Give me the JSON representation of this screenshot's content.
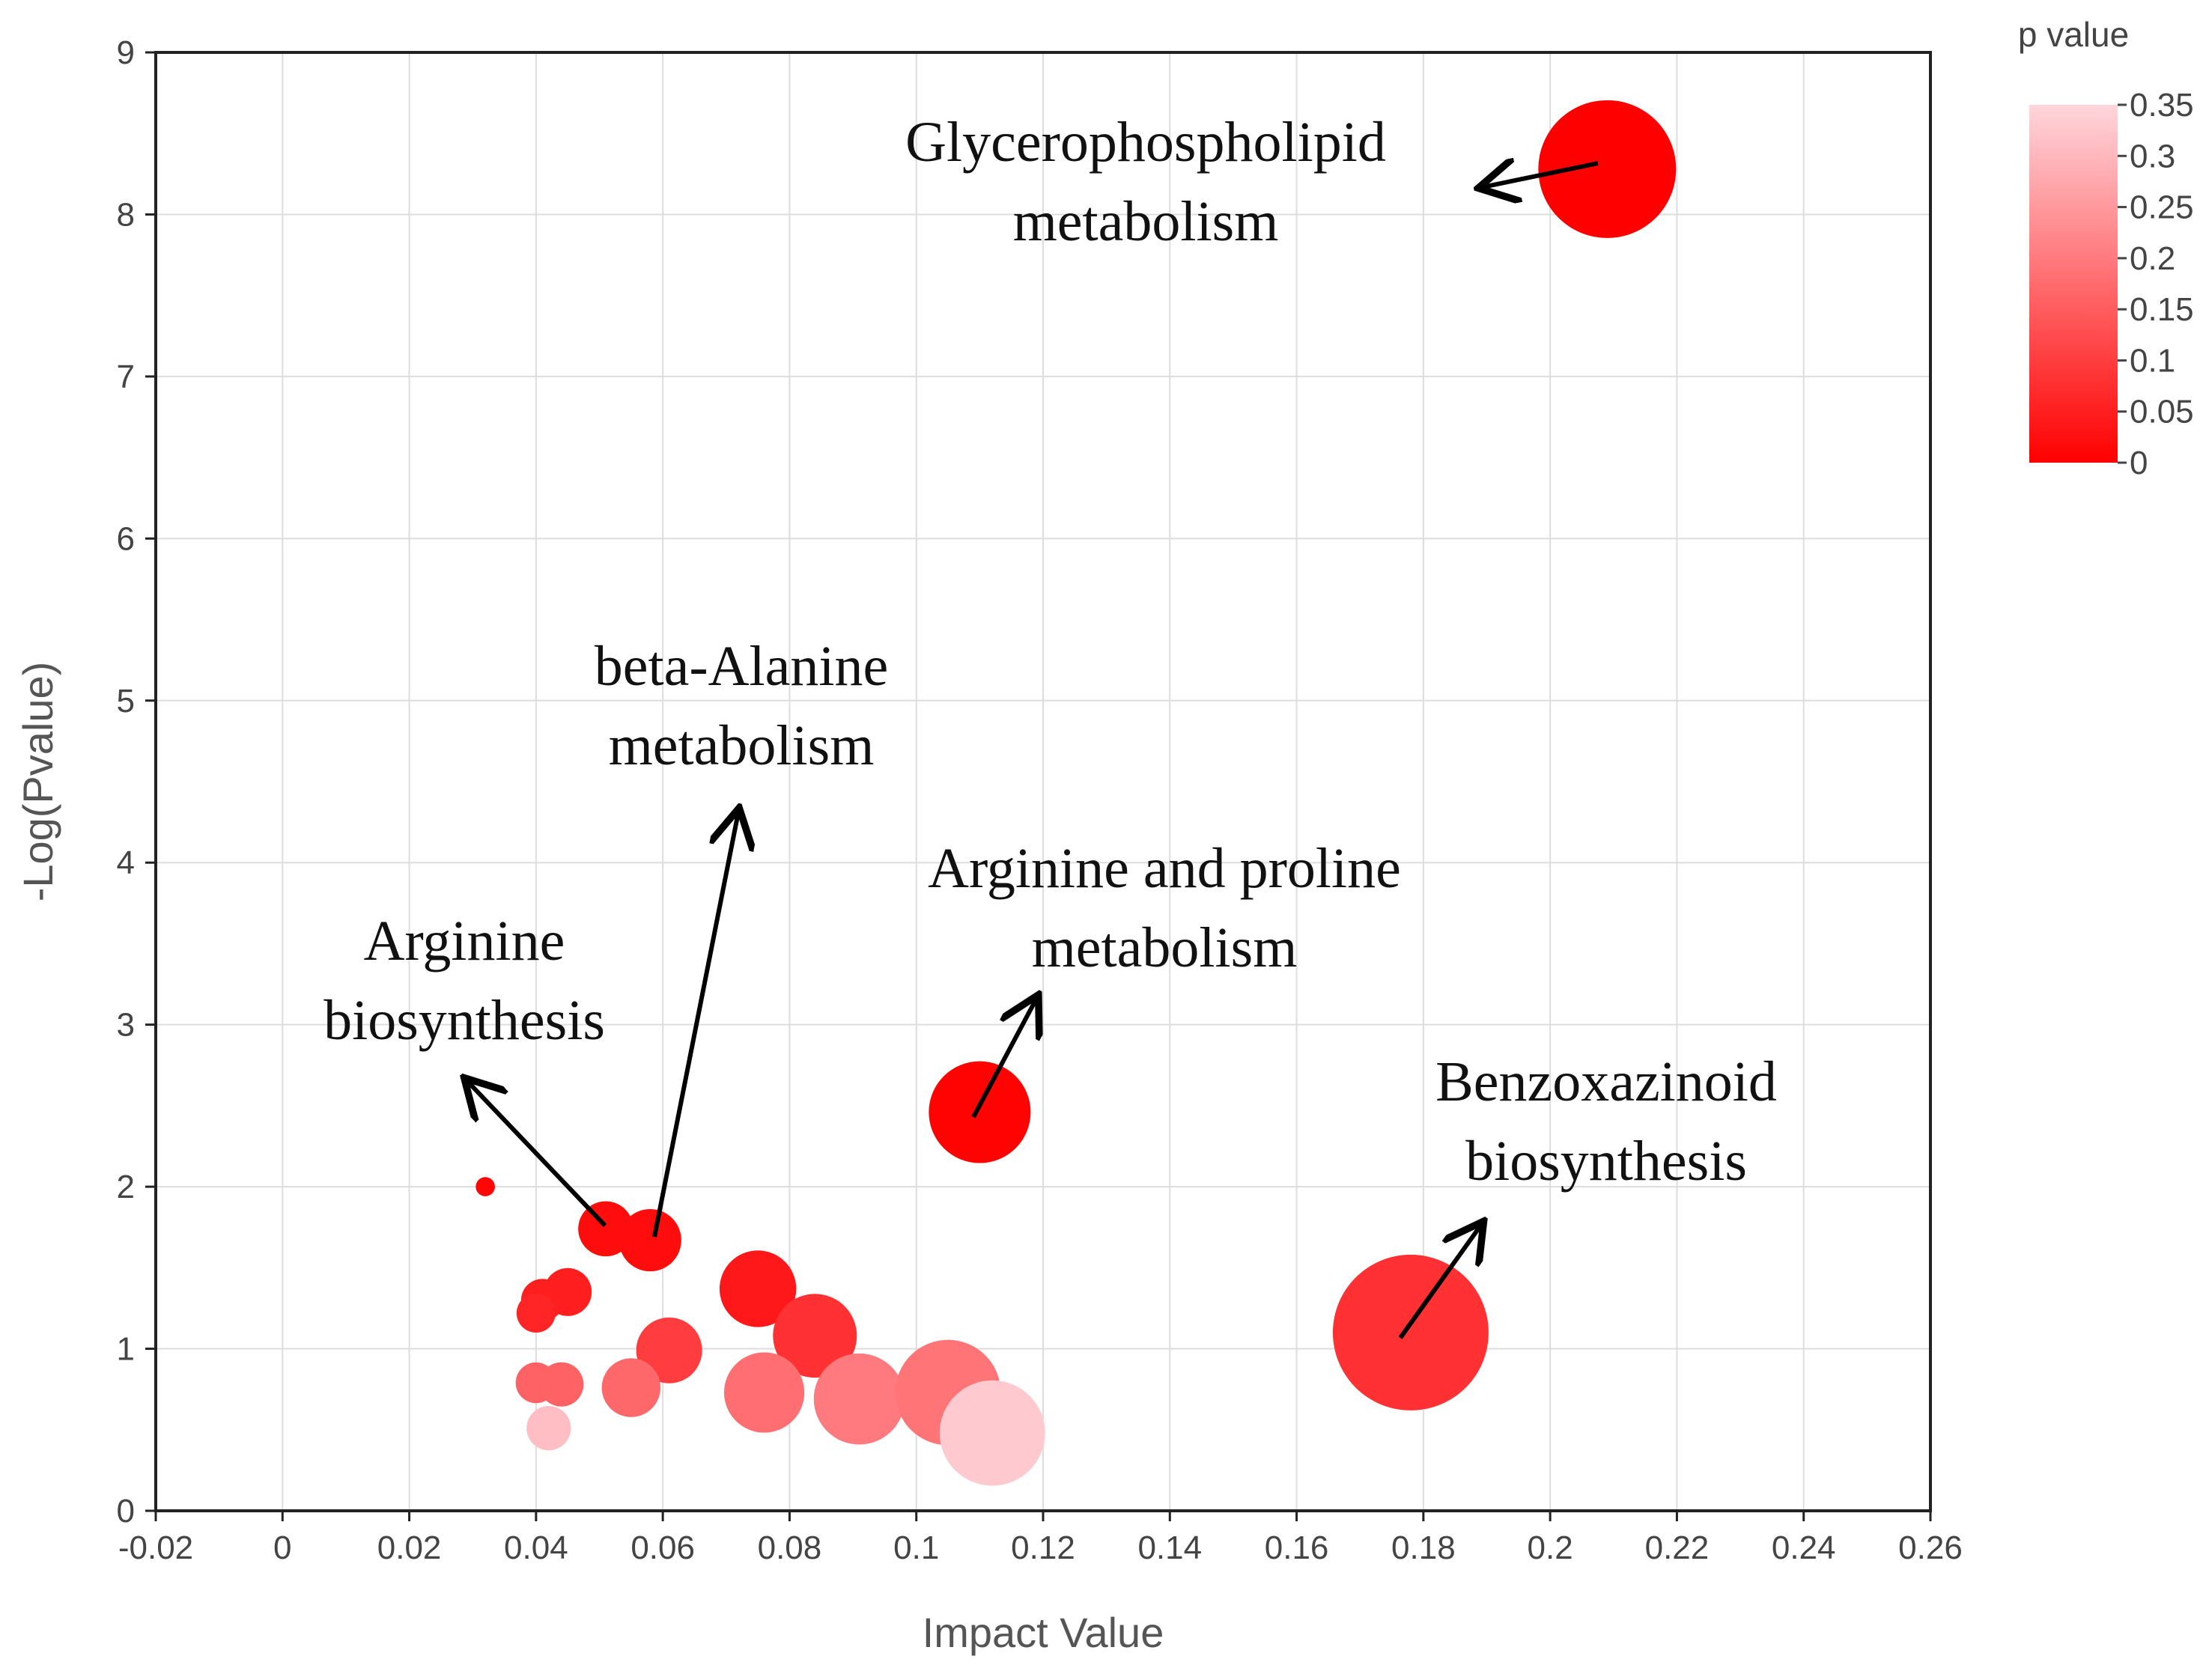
{
  "chart_data": {
    "type": "scatter",
    "xlabel": "Impact Value",
    "ylabel": "-Log(Pvalue)",
    "xlim": [
      -0.02,
      0.26
    ],
    "ylim": [
      0,
      9
    ],
    "xticks": [
      "-0.02",
      "0",
      "0.02",
      "0.04",
      "0.06",
      "0.08",
      "0.1",
      "0.12",
      "0.14",
      "0.16",
      "0.18",
      "0.2",
      "0.22",
      "0.24",
      "0.26"
    ],
    "yticks": [
      "0",
      "1",
      "2",
      "3",
      "4",
      "5",
      "6",
      "7",
      "8",
      "9"
    ],
    "grid": true,
    "colorbar": {
      "title": "p value",
      "ticks": [
        "0",
        "0.05",
        "0.1",
        "0.15",
        "0.2",
        "0.25",
        "0.3",
        "0.35"
      ],
      "range": [
        0,
        0.35
      ],
      "color_low": "#ff0000",
      "color_high": "#ffd6dc"
    },
    "points": [
      {
        "x": 0.209,
        "y": 8.28,
        "p": 0.0,
        "size": 7
      },
      {
        "x": 0.178,
        "y": 1.1,
        "p": 0.08,
        "size": 8
      },
      {
        "x": 0.11,
        "y": 2.46,
        "p": 0.005,
        "size": 5
      },
      {
        "x": 0.032,
        "y": 2.0,
        "p": 0.01,
        "size": 0.4
      },
      {
        "x": 0.051,
        "y": 1.74,
        "p": 0.02,
        "size": 2.4
      },
      {
        "x": 0.058,
        "y": 1.67,
        "p": 0.02,
        "size": 2.8
      },
      {
        "x": 0.075,
        "y": 1.37,
        "p": 0.04,
        "size": 3.6
      },
      {
        "x": 0.084,
        "y": 1.08,
        "p": 0.08,
        "size": 4
      },
      {
        "x": 0.045,
        "y": 1.35,
        "p": 0.05,
        "size": 2
      },
      {
        "x": 0.041,
        "y": 1.3,
        "p": 0.05,
        "size": 1.7
      },
      {
        "x": 0.04,
        "y": 1.22,
        "p": 0.06,
        "size": 1.5
      },
      {
        "x": 0.061,
        "y": 0.99,
        "p": 0.1,
        "size": 3
      },
      {
        "x": 0.04,
        "y": 0.79,
        "p": 0.16,
        "size": 1.6
      },
      {
        "x": 0.044,
        "y": 0.78,
        "p": 0.16,
        "size": 1.8
      },
      {
        "x": 0.055,
        "y": 0.76,
        "p": 0.17,
        "size": 2.6
      },
      {
        "x": 0.076,
        "y": 0.73,
        "p": 0.18,
        "size": 3.8
      },
      {
        "x": 0.091,
        "y": 0.69,
        "p": 0.2,
        "size": 4.4
      },
      {
        "x": 0.105,
        "y": 0.73,
        "p": 0.19,
        "size": 5.2
      },
      {
        "x": 0.042,
        "y": 0.51,
        "p": 0.31,
        "size": 1.8
      },
      {
        "x": 0.112,
        "y": 0.48,
        "p": 0.33,
        "size": 5.2
      }
    ],
    "annotations": [
      {
        "lines": [
          "Glycerophospholipid",
          "metabolism"
        ],
        "target": [
          0.209,
          8.28
        ]
      },
      {
        "lines": [
          "beta-Alanine",
          "metabolism"
        ],
        "target": [
          0.058,
          1.67
        ]
      },
      {
        "lines": [
          "Arginine and proline",
          "metabolism"
        ],
        "target": [
          0.11,
          2.46
        ]
      },
      {
        "lines": [
          "Arginine",
          "biosynthesis"
        ],
        "target": [
          0.051,
          1.74
        ]
      },
      {
        "lines": [
          "Benzoxazinoid",
          "biosynthesis"
        ],
        "target": [
          0.178,
          1.1
        ]
      }
    ]
  }
}
